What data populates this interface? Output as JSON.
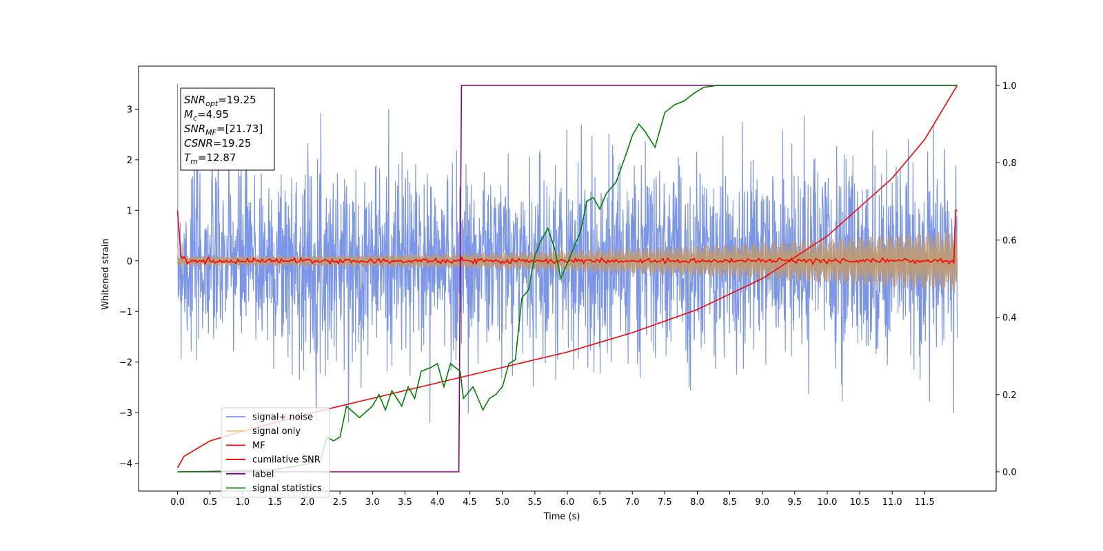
{
  "chart_data": {
    "type": "line",
    "xlabel": "Time (s)",
    "ylabel": "Whitened strain",
    "xlim": [
      -0.6,
      12.6
    ],
    "ylim_left": [
      -4.55,
      3.85
    ],
    "ylim_right": [
      -0.05,
      1.05
    ],
    "x_ticks": [
      "0.0",
      "0.5",
      "1.0",
      "1.5",
      "2.0",
      "2.5",
      "3.0",
      "3.5",
      "4.0",
      "4.5",
      "5.0",
      "5.5",
      "6.0",
      "6.5",
      "7.0",
      "7.5",
      "8.0",
      "8.5",
      "9.0",
      "9.5",
      "10.0",
      "10.5",
      "11.0",
      "11.5"
    ],
    "y_ticks_left": [
      "−4",
      "−3",
      "−2",
      "−1",
      "0",
      "1",
      "2",
      "3"
    ],
    "y_ticks_right": [
      "0.0",
      "0.2",
      "0.4",
      "0.6",
      "0.8",
      "1.0"
    ],
    "grid": false,
    "legend_position": "lower-left",
    "annotation": [
      {
        "var": "SNR",
        "sub": "opt",
        "value": "=19.25"
      },
      {
        "var": "M",
        "sub": "c",
        "value": "=4.95"
      },
      {
        "var": "SNR",
        "sub": "MF",
        "value": "=[21.73]"
      },
      {
        "var": "CSNR",
        "sub": "",
        "value": "=19.25"
      },
      {
        "var": "T",
        "sub": "m",
        "value": "=12.87"
      }
    ],
    "series": [
      {
        "name": "signal+ noise",
        "color": "#7b96e8",
        "axis": "left",
        "description_type": "noise",
        "t_range": [
          0.0,
          12.0
        ],
        "std": 1.0,
        "y_range": [
          -3.2,
          3.5
        ]
      },
      {
        "name": "signal only",
        "color": "#f5c56f",
        "axis": "left",
        "description_type": "chirp",
        "t_range": [
          0.0,
          12.0
        ],
        "amplitude_start": 0.1,
        "amplitude_end": 0.6
      },
      {
        "name": "MF",
        "color": "#ff0000",
        "axis": "left",
        "points": [
          [
            0.0,
            1.0
          ],
          [
            0.05,
            0.1
          ],
          [
            0.15,
            0.0
          ],
          [
            6.0,
            0.0
          ],
          [
            11.95,
            0.0
          ],
          [
            12.0,
            1.0
          ]
        ]
      },
      {
        "name": "cumilative SNR",
        "color": "#ff0000",
        "axis": "right",
        "points": [
          [
            0.0,
            0.01
          ],
          [
            0.1,
            0.04
          ],
          [
            0.5,
            0.08
          ],
          [
            1.0,
            0.105
          ],
          [
            2.0,
            0.15
          ],
          [
            3.0,
            0.19
          ],
          [
            4.0,
            0.23
          ],
          [
            5.0,
            0.27
          ],
          [
            6.0,
            0.31
          ],
          [
            7.0,
            0.36
          ],
          [
            8.0,
            0.42
          ],
          [
            9.0,
            0.5
          ],
          [
            10.0,
            0.61
          ],
          [
            11.0,
            0.76
          ],
          [
            11.5,
            0.86
          ],
          [
            12.0,
            1.0
          ]
        ]
      },
      {
        "name": "label",
        "color": "#800080",
        "axis": "right",
        "points": [
          [
            0.0,
            0.0
          ],
          [
            4.33,
            0.0
          ],
          [
            4.37,
            1.0
          ],
          [
            12.0,
            1.0
          ]
        ]
      },
      {
        "name": "signal statistics",
        "color": "#008000",
        "axis": "right",
        "points": [
          [
            0.0,
            0.0
          ],
          [
            1.0,
            0.002
          ],
          [
            1.5,
            0.005
          ],
          [
            2.0,
            0.02
          ],
          [
            2.2,
            0.03
          ],
          [
            2.3,
            0.09
          ],
          [
            2.4,
            0.08
          ],
          [
            2.5,
            0.09
          ],
          [
            2.6,
            0.17
          ],
          [
            2.8,
            0.14
          ],
          [
            3.0,
            0.17
          ],
          [
            3.1,
            0.2
          ],
          [
            3.2,
            0.16
          ],
          [
            3.3,
            0.21
          ],
          [
            3.45,
            0.17
          ],
          [
            3.55,
            0.22
          ],
          [
            3.65,
            0.19
          ],
          [
            3.75,
            0.26
          ],
          [
            3.9,
            0.27
          ],
          [
            4.0,
            0.28
          ],
          [
            4.1,
            0.22
          ],
          [
            4.2,
            0.28
          ],
          [
            4.35,
            0.26
          ],
          [
            4.4,
            0.19
          ],
          [
            4.55,
            0.22
          ],
          [
            4.7,
            0.16
          ],
          [
            4.8,
            0.19
          ],
          [
            4.9,
            0.2
          ],
          [
            5.0,
            0.22
          ],
          [
            5.1,
            0.28
          ],
          [
            5.2,
            0.29
          ],
          [
            5.3,
            0.45
          ],
          [
            5.4,
            0.47
          ],
          [
            5.5,
            0.56
          ],
          [
            5.6,
            0.6
          ],
          [
            5.7,
            0.63
          ],
          [
            5.8,
            0.58
          ],
          [
            5.9,
            0.5
          ],
          [
            6.0,
            0.54
          ],
          [
            6.1,
            0.58
          ],
          [
            6.2,
            0.62
          ],
          [
            6.3,
            0.7
          ],
          [
            6.4,
            0.71
          ],
          [
            6.5,
            0.68
          ],
          [
            6.6,
            0.72
          ],
          [
            6.75,
            0.75
          ],
          [
            6.9,
            0.82
          ],
          [
            7.0,
            0.87
          ],
          [
            7.1,
            0.9
          ],
          [
            7.2,
            0.88
          ],
          [
            7.35,
            0.84
          ],
          [
            7.5,
            0.93
          ],
          [
            7.65,
            0.95
          ],
          [
            7.8,
            0.96
          ],
          [
            7.95,
            0.98
          ],
          [
            8.1,
            0.995
          ],
          [
            8.3,
            1.0
          ],
          [
            12.0,
            1.0
          ]
        ]
      }
    ]
  }
}
